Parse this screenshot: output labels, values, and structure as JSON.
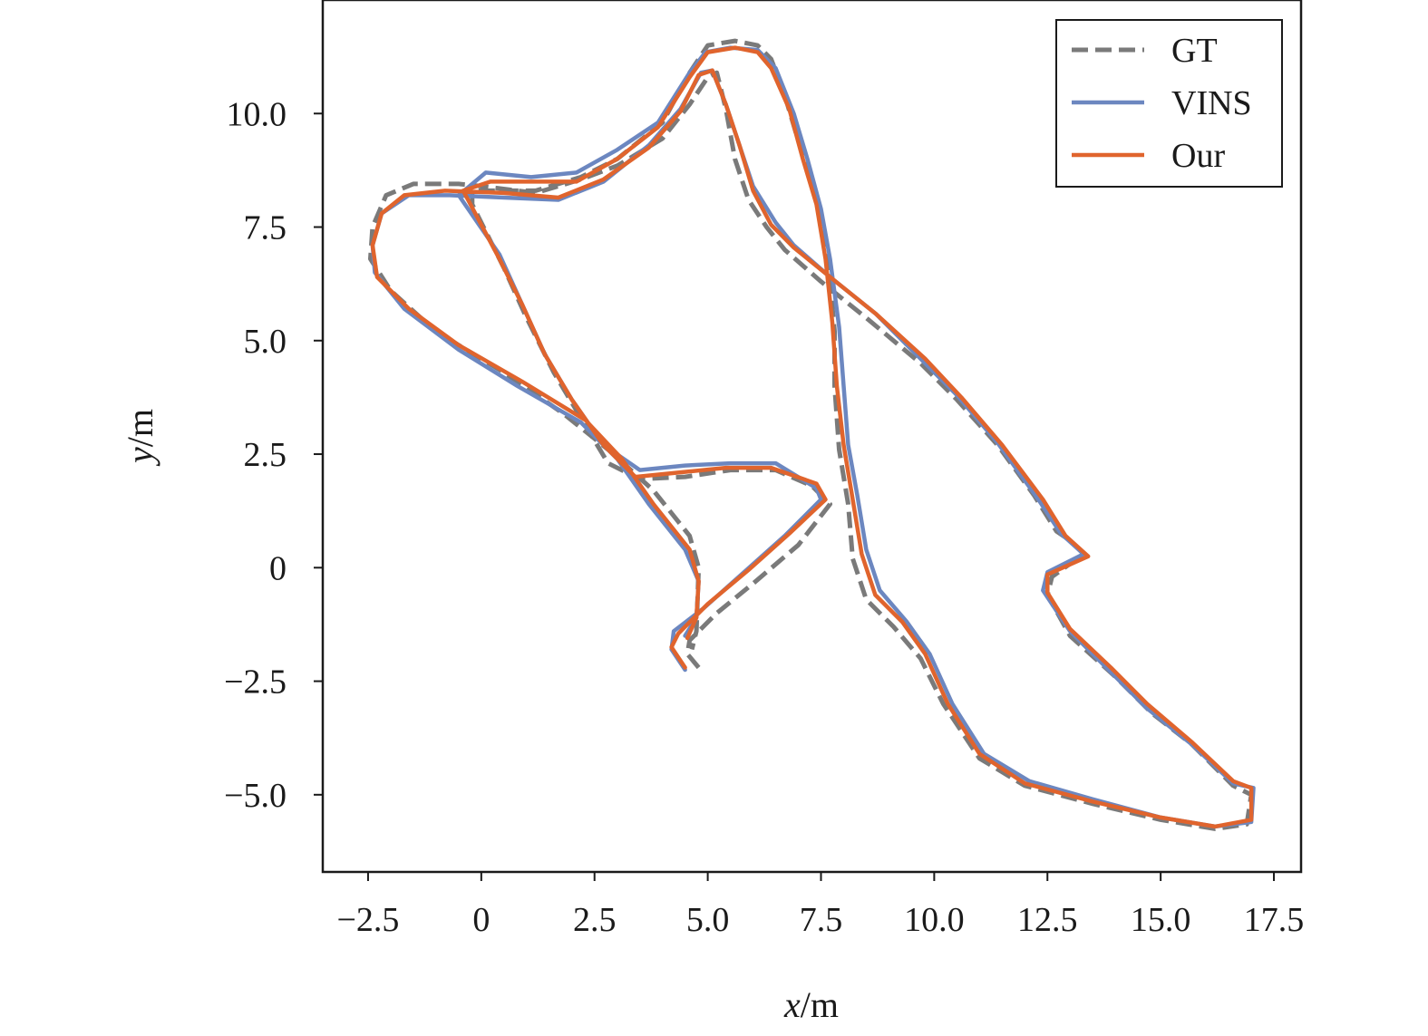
{
  "chart_data": {
    "type": "line",
    "xlabel": "x/m",
    "ylabel": "y/m",
    "xlabel_var": "x",
    "xlabel_unit": "/m",
    "ylabel_var": "y",
    "ylabel_unit": "/m",
    "xlim": [
      -3.5,
      18.1
    ],
    "ylim": [
      -6.7,
      12.5
    ],
    "xticks": [
      -2.5,
      0,
      2.5,
      5.0,
      7.5,
      10.0,
      12.5,
      15.0,
      17.5
    ],
    "xtick_labels": [
      "−2.5",
      "0",
      "2.5",
      "5.0",
      "7.5",
      "10.0",
      "12.5",
      "15.0",
      "17.5"
    ],
    "yticks": [
      -5.0,
      -2.5,
      0,
      2.5,
      5.0,
      7.5,
      10.0
    ],
    "ytick_labels": [
      "−5.0",
      "−2.5",
      "0",
      "2.5",
      "5.0",
      "7.5",
      "10.0"
    ],
    "grid": false,
    "legend_position": "top-right",
    "series": [
      {
        "name": "GT",
        "color": "#7a7a7a",
        "style": "dashed",
        "points": [
          [
            4.8,
            -2.2
          ],
          [
            4.55,
            -1.9
          ],
          [
            4.6,
            -1.6
          ],
          [
            5.2,
            -1.0
          ],
          [
            6.0,
            -0.35
          ],
          [
            7.0,
            0.5
          ],
          [
            7.7,
            1.4
          ],
          [
            7.3,
            1.8
          ],
          [
            6.5,
            2.15
          ],
          [
            5.5,
            2.15
          ],
          [
            4.5,
            2.0
          ],
          [
            3.5,
            1.95
          ],
          [
            2.8,
            2.3
          ],
          [
            2.2,
            3.3
          ],
          [
            1.6,
            4.3
          ],
          [
            1.0,
            5.5
          ],
          [
            0.5,
            6.6
          ],
          [
            -0.2,
            8.0
          ],
          [
            -0.2,
            8.3
          ],
          [
            0.5,
            8.3
          ],
          [
            1.2,
            8.3
          ],
          [
            2.2,
            8.6
          ],
          [
            3.0,
            9.0
          ],
          [
            4.0,
            9.8
          ],
          [
            4.6,
            10.9
          ],
          [
            5.0,
            11.5
          ],
          [
            5.6,
            11.6
          ],
          [
            6.1,
            11.5
          ],
          [
            6.4,
            11.2
          ],
          [
            6.7,
            10.4
          ],
          [
            7.0,
            9.4
          ],
          [
            7.3,
            8.4
          ],
          [
            7.6,
            7.3
          ],
          [
            7.7,
            6.3
          ],
          [
            7.8,
            5.2
          ],
          [
            7.8,
            4.0
          ],
          [
            7.9,
            2.6
          ],
          [
            8.1,
            1.4
          ],
          [
            8.2,
            0.2
          ],
          [
            8.5,
            -0.7
          ],
          [
            9.1,
            -1.3
          ],
          [
            9.7,
            -2.0
          ],
          [
            10.2,
            -3.0
          ],
          [
            11.0,
            -4.2
          ],
          [
            12.0,
            -4.8
          ],
          [
            13.5,
            -5.2
          ],
          [
            15.0,
            -5.55
          ],
          [
            16.2,
            -5.75
          ],
          [
            16.9,
            -5.65
          ],
          [
            17.0,
            -5.0
          ],
          [
            16.6,
            -4.8
          ],
          [
            15.7,
            -3.9
          ],
          [
            14.8,
            -3.2
          ],
          [
            14.0,
            -2.4
          ],
          [
            13.0,
            -1.5
          ],
          [
            12.5,
            -0.6
          ],
          [
            12.6,
            -0.2
          ],
          [
            13.3,
            0.3
          ],
          [
            13.0,
            0.6
          ],
          [
            12.7,
            0.8
          ],
          [
            12.2,
            1.6
          ],
          [
            11.4,
            2.7
          ],
          [
            10.5,
            3.7
          ],
          [
            9.7,
            4.5
          ],
          [
            8.5,
            5.5
          ],
          [
            7.5,
            6.3
          ],
          [
            6.7,
            7.0
          ],
          [
            6.3,
            7.5
          ],
          [
            5.9,
            8.1
          ],
          [
            5.6,
            9.0
          ],
          [
            5.4,
            10.1
          ],
          [
            5.2,
            10.9
          ],
          [
            5.0,
            10.8
          ],
          [
            4.6,
            10.2
          ],
          [
            4.0,
            9.45
          ],
          [
            3.0,
            8.85
          ],
          [
            2.2,
            8.55
          ],
          [
            1.2,
            8.25
          ],
          [
            0.0,
            8.4
          ],
          [
            -0.5,
            8.45
          ],
          [
            -1.5,
            8.45
          ],
          [
            -2.1,
            8.2
          ],
          [
            -2.4,
            7.5
          ],
          [
            -2.45,
            6.8
          ],
          [
            -2.0,
            6.1
          ],
          [
            -1.0,
            5.2
          ],
          [
            0.5,
            4.3
          ],
          [
            1.8,
            3.4
          ],
          [
            2.8,
            2.6
          ],
          [
            3.8,
            1.7
          ],
          [
            4.6,
            0.7
          ],
          [
            4.8,
            0.0
          ],
          [
            4.75,
            -1.4
          ],
          [
            4.65,
            -1.8
          ]
        ]
      },
      {
        "name": "VINS",
        "color": "#6c87c0",
        "style": "solid",
        "points": [
          [
            4.5,
            -2.25
          ],
          [
            4.2,
            -1.8
          ],
          [
            4.25,
            -1.4
          ],
          [
            4.9,
            -0.9
          ],
          [
            5.8,
            -0.1
          ],
          [
            6.7,
            0.7
          ],
          [
            7.5,
            1.5
          ],
          [
            7.4,
            1.75
          ],
          [
            6.5,
            2.3
          ],
          [
            5.5,
            2.3
          ],
          [
            4.5,
            2.25
          ],
          [
            3.5,
            2.15
          ],
          [
            2.7,
            2.7
          ],
          [
            2.0,
            3.7
          ],
          [
            1.4,
            4.7
          ],
          [
            0.9,
            5.8
          ],
          [
            0.4,
            6.9
          ],
          [
            -0.5,
            8.2
          ],
          [
            0.1,
            8.7
          ],
          [
            1.1,
            8.6
          ],
          [
            2.1,
            8.7
          ],
          [
            3.0,
            9.2
          ],
          [
            3.9,
            9.8
          ],
          [
            4.6,
            10.9
          ],
          [
            4.95,
            11.35
          ],
          [
            5.5,
            11.45
          ],
          [
            6.1,
            11.4
          ],
          [
            6.5,
            11.0
          ],
          [
            6.9,
            10.0
          ],
          [
            7.2,
            9.0
          ],
          [
            7.5,
            7.9
          ],
          [
            7.7,
            6.8
          ],
          [
            7.9,
            5.3
          ],
          [
            8.0,
            4.0
          ],
          [
            8.1,
            2.7
          ],
          [
            8.3,
            1.6
          ],
          [
            8.5,
            0.4
          ],
          [
            8.8,
            -0.5
          ],
          [
            9.4,
            -1.2
          ],
          [
            9.9,
            -1.9
          ],
          [
            10.4,
            -3.0
          ],
          [
            11.1,
            -4.1
          ],
          [
            12.1,
            -4.7
          ],
          [
            13.5,
            -5.1
          ],
          [
            15.0,
            -5.5
          ],
          [
            16.2,
            -5.7
          ],
          [
            17.0,
            -5.6
          ],
          [
            17.05,
            -4.85
          ],
          [
            16.6,
            -4.75
          ],
          [
            15.7,
            -3.9
          ],
          [
            14.7,
            -3.1
          ],
          [
            13.9,
            -2.3
          ],
          [
            13.0,
            -1.4
          ],
          [
            12.4,
            -0.5
          ],
          [
            12.5,
            -0.1
          ],
          [
            13.3,
            0.3
          ],
          [
            12.8,
            0.75
          ],
          [
            12.3,
            1.5
          ],
          [
            11.4,
            2.75
          ],
          [
            10.5,
            3.8
          ],
          [
            9.7,
            4.6
          ],
          [
            8.7,
            5.6
          ],
          [
            7.7,
            6.4
          ],
          [
            6.9,
            7.1
          ],
          [
            6.5,
            7.6
          ],
          [
            6.0,
            8.4
          ],
          [
            5.7,
            9.3
          ],
          [
            5.4,
            10.2
          ],
          [
            5.1,
            10.95
          ],
          [
            4.85,
            10.9
          ],
          [
            4.4,
            10.1
          ],
          [
            3.7,
            9.3
          ],
          [
            2.7,
            8.5
          ],
          [
            1.7,
            8.1
          ],
          [
            0.5,
            8.15
          ],
          [
            -0.7,
            8.2
          ],
          [
            -1.6,
            8.2
          ],
          [
            -2.2,
            7.8
          ],
          [
            -2.4,
            7.1
          ],
          [
            -2.35,
            6.5
          ],
          [
            -1.7,
            5.7
          ],
          [
            -0.5,
            4.8
          ],
          [
            0.8,
            4.0
          ],
          [
            2.2,
            3.2
          ],
          [
            3.0,
            2.4
          ],
          [
            3.7,
            1.4
          ],
          [
            4.5,
            0.4
          ],
          [
            4.8,
            -0.3
          ],
          [
            4.75,
            -1.1
          ],
          [
            4.5,
            -1.5
          ]
        ]
      },
      {
        "name": "Our",
        "color": "#e0642d",
        "style": "solid",
        "points": [
          [
            4.5,
            -2.2
          ],
          [
            4.2,
            -1.75
          ],
          [
            4.35,
            -1.45
          ],
          [
            5.0,
            -0.8
          ],
          [
            5.9,
            -0.05
          ],
          [
            6.8,
            0.75
          ],
          [
            7.6,
            1.5
          ],
          [
            7.4,
            1.85
          ],
          [
            6.4,
            2.2
          ],
          [
            5.4,
            2.2
          ],
          [
            4.4,
            2.1
          ],
          [
            3.4,
            2.0
          ],
          [
            2.7,
            2.7
          ],
          [
            2.0,
            3.7
          ],
          [
            1.4,
            4.7
          ],
          [
            0.9,
            5.8
          ],
          [
            0.4,
            6.8
          ],
          [
            -0.4,
            8.3
          ],
          [
            0.2,
            8.5
          ],
          [
            1.1,
            8.5
          ],
          [
            2.1,
            8.5
          ],
          [
            3.0,
            9.0
          ],
          [
            3.9,
            9.7
          ],
          [
            4.6,
            10.8
          ],
          [
            5.0,
            11.35
          ],
          [
            5.6,
            11.45
          ],
          [
            6.1,
            11.35
          ],
          [
            6.4,
            11.0
          ],
          [
            6.8,
            10.1
          ],
          [
            7.1,
            9.0
          ],
          [
            7.4,
            8.0
          ],
          [
            7.6,
            6.8
          ],
          [
            7.75,
            5.4
          ],
          [
            7.85,
            4.0
          ],
          [
            8.0,
            2.7
          ],
          [
            8.2,
            1.5
          ],
          [
            8.4,
            0.3
          ],
          [
            8.7,
            -0.6
          ],
          [
            9.3,
            -1.2
          ],
          [
            9.8,
            -1.9
          ],
          [
            10.3,
            -3.0
          ],
          [
            11.0,
            -4.1
          ],
          [
            12.0,
            -4.75
          ],
          [
            13.5,
            -5.15
          ],
          [
            15.0,
            -5.5
          ],
          [
            16.2,
            -5.7
          ],
          [
            17.0,
            -5.55
          ],
          [
            17.0,
            -4.85
          ],
          [
            16.6,
            -4.7
          ],
          [
            15.7,
            -3.85
          ],
          [
            14.7,
            -3.0
          ],
          [
            13.9,
            -2.2
          ],
          [
            13.0,
            -1.35
          ],
          [
            12.5,
            -0.55
          ],
          [
            12.5,
            -0.15
          ],
          [
            13.4,
            0.25
          ],
          [
            12.9,
            0.7
          ],
          [
            12.4,
            1.5
          ],
          [
            11.5,
            2.7
          ],
          [
            10.6,
            3.75
          ],
          [
            9.8,
            4.6
          ],
          [
            8.7,
            5.6
          ],
          [
            7.7,
            6.4
          ],
          [
            6.9,
            7.05
          ],
          [
            6.4,
            7.55
          ],
          [
            6.0,
            8.3
          ],
          [
            5.7,
            9.3
          ],
          [
            5.4,
            10.2
          ],
          [
            5.1,
            10.95
          ],
          [
            4.8,
            10.85
          ],
          [
            4.4,
            10.05
          ],
          [
            3.7,
            9.25
          ],
          [
            2.7,
            8.55
          ],
          [
            1.7,
            8.15
          ],
          [
            0.5,
            8.25
          ],
          [
            -0.8,
            8.3
          ],
          [
            -1.7,
            8.2
          ],
          [
            -2.2,
            7.8
          ],
          [
            -2.4,
            7.1
          ],
          [
            -2.3,
            6.4
          ],
          [
            -1.6,
            5.7
          ],
          [
            -0.5,
            4.9
          ],
          [
            0.9,
            4.1
          ],
          [
            2.3,
            3.25
          ],
          [
            3.1,
            2.4
          ],
          [
            3.8,
            1.4
          ],
          [
            4.6,
            0.4
          ],
          [
            4.8,
            -0.3
          ],
          [
            4.75,
            -1.1
          ],
          [
            4.55,
            -1.55
          ]
        ]
      }
    ]
  }
}
